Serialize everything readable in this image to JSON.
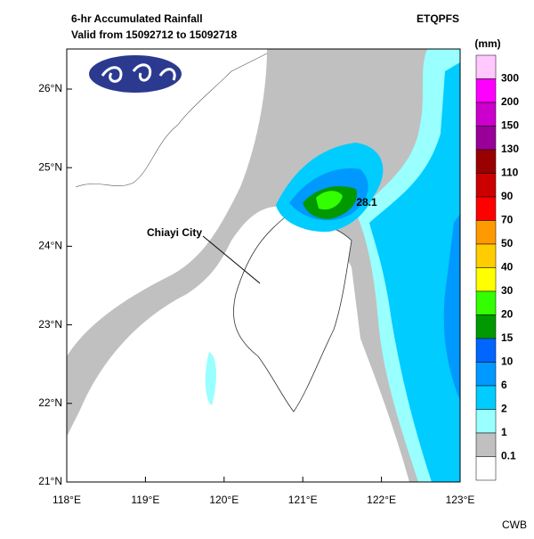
{
  "header": {
    "title": "6-hr Accumulated Rainfall",
    "subtitle": "Valid from 15092712 to 15092718",
    "product": "ETQPFS"
  },
  "map": {
    "lat_labels": [
      "26°N",
      "25°N",
      "24°N",
      "23°N",
      "22°N",
      "21°N"
    ],
    "lon_labels": [
      "118°E",
      "119°E",
      "120°E",
      "121°E",
      "122°E",
      "123°E"
    ],
    "city_label": "Chiayi City",
    "max_label": "28.1"
  },
  "legend": {
    "unit": "(mm)",
    "levels": [
      "300",
      "200",
      "150",
      "130",
      "110",
      "90",
      "70",
      "50",
      "40",
      "30",
      "20",
      "15",
      "10",
      "6",
      "2",
      "1",
      "0.1"
    ],
    "colors": [
      "#ffc8ff",
      "#ff00ff",
      "#cc00cc",
      "#990099",
      "#990000",
      "#cc0000",
      "#ff0000",
      "#ff9900",
      "#ffcc00",
      "#ffff00",
      "#33ff00",
      "#009900",
      "#0066ff",
      "#0099ff",
      "#00ccff",
      "#99ffff",
      "#c0c0c0",
      "#ffffff"
    ]
  },
  "footer": {
    "credit": "CWB"
  }
}
